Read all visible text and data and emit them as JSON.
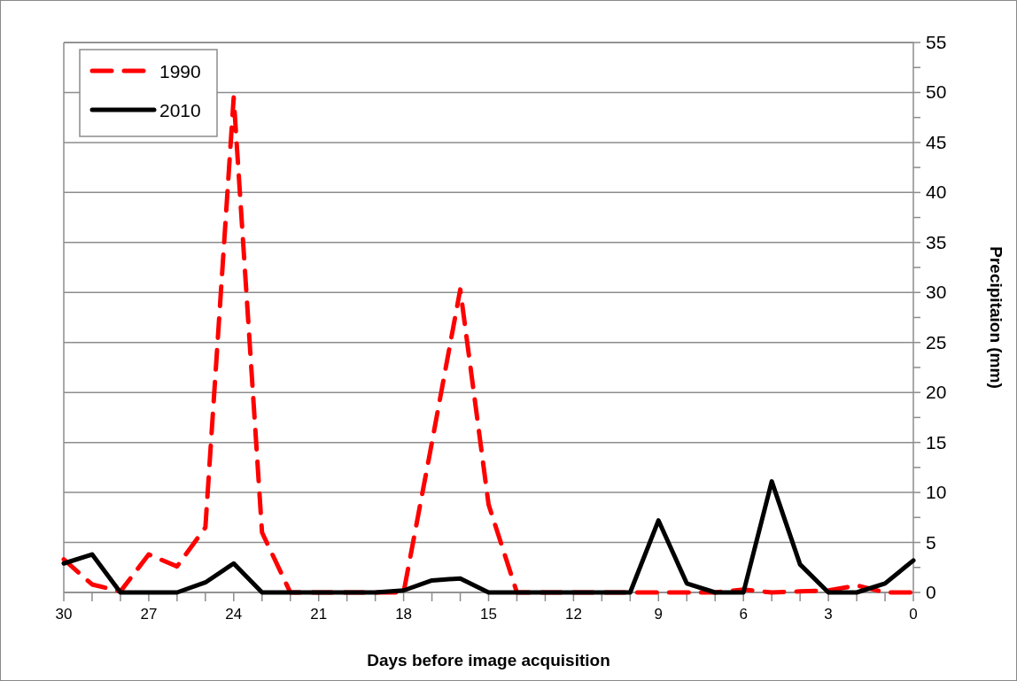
{
  "chart_data": {
    "type": "line",
    "xlabel": "Days before image acquisition",
    "ylabel": "Precipitaion (mm)",
    "x": [
      30,
      29,
      28,
      27,
      26,
      25,
      24,
      23,
      22,
      21,
      20,
      19,
      18,
      17,
      16,
      15,
      14,
      13,
      12,
      11,
      10,
      9,
      8,
      7,
      6,
      5,
      4,
      3,
      2,
      1,
      0
    ],
    "series": [
      {
        "name": "1990",
        "color": "#ff0000",
        "line_style": "dashed",
        "values": [
          3.3,
          0.8,
          0.1,
          3.8,
          2.6,
          6.5,
          49.5,
          6,
          0,
          0,
          0,
          0,
          0,
          15,
          30.3,
          8.8,
          0,
          0,
          0,
          0,
          0,
          0,
          0,
          0,
          0.3,
          0,
          0.1,
          0.2,
          0.7,
          0,
          0
        ]
      },
      {
        "name": "2010",
        "color": "#000000",
        "line_style": "solid",
        "values": [
          2.9,
          3.8,
          0,
          0,
          0,
          1,
          2.9,
          0,
          0,
          0,
          0,
          0,
          0.2,
          1.2,
          1.4,
          0,
          0,
          0,
          0,
          0,
          0,
          7.2,
          0.9,
          0,
          0,
          11.1,
          2.8,
          0,
          0,
          0.9,
          3.2
        ]
      }
    ],
    "xlim": [
      30,
      0
    ],
    "xticks": [
      30,
      {
        "value": 29,
        "label": null
      },
      {
        "value": 28,
        "label": null
      },
      27,
      {
        "value": 26,
        "label": null
      },
      {
        "value": 25,
        "label": null
      },
      24,
      {
        "value": 23,
        "label": null
      },
      {
        "value": 22,
        "label": null
      },
      21,
      {
        "value": 20,
        "label": null
      },
      {
        "value": 19,
        "label": null
      },
      18,
      {
        "value": 17,
        "label": null
      },
      {
        "value": 16,
        "label": null
      },
      15,
      {
        "value": 14,
        "label": null
      },
      {
        "value": 13,
        "label": null
      },
      12,
      {
        "value": 11,
        "label": null
      },
      {
        "value": 10,
        "label": null
      },
      9,
      {
        "value": 8,
        "label": null
      },
      {
        "value": 7,
        "label": null
      },
      6,
      {
        "value": 5,
        "label": null
      },
      {
        "value": 4,
        "label": null
      },
      3,
      {
        "value": 2,
        "label": null
      },
      {
        "value": 1,
        "label": null
      },
      0
    ],
    "ylim": [
      0,
      55
    ],
    "yticks": [
      0,
      {
        "value": 2.5,
        "label": null
      },
      5,
      {
        "value": 7.5,
        "label": null
      },
      10,
      {
        "value": 12.5,
        "label": null
      },
      15,
      {
        "value": 17.5,
        "label": null
      },
      20,
      {
        "value": 22.5,
        "label": null
      },
      25,
      {
        "value": 27.5,
        "label": null
      },
      30,
      {
        "value": 32.5,
        "label": null
      },
      35,
      {
        "value": 37.5,
        "label": null
      },
      40,
      {
        "value": 42.5,
        "label": null
      },
      45,
      {
        "value": 47.5,
        "label": null
      },
      50,
      {
        "value": 52.5,
        "label": null
      },
      55
    ],
    "grid": "y",
    "legend": "top left"
  }
}
